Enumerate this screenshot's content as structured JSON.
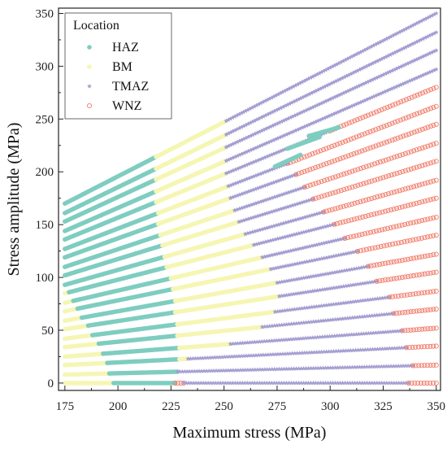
{
  "chart_data": {
    "type": "scatter",
    "title": "",
    "xlabel": "Maximum stress (MPa)",
    "ylabel": "Stress amplitude (MPa)",
    "xlim": [
      172,
      352
    ],
    "ylim": [
      -7,
      355
    ],
    "xticks": [
      175,
      200,
      225,
      250,
      275,
      300,
      325,
      350
    ],
    "yticks": [
      0,
      50,
      100,
      150,
      200,
      250,
      300,
      350
    ],
    "grid": false,
    "legend": {
      "title": "Location",
      "placement": "top-left"
    },
    "series": [
      {
        "name": "HAZ",
        "marker": "filled-circle",
        "color": "#7ecdc0"
      },
      {
        "name": "BM",
        "marker": "filled-circle",
        "color": "#f6f6b4"
      },
      {
        "name": "TMAZ",
        "marker": "star",
        "color": "#a39ed1"
      },
      {
        "name": "WNZ",
        "marker": "open-circle",
        "color": "#f07b68"
      }
    ],
    "line_family": {
      "description": "Each row is a line of constant stress ratio: amplitude rises linearly from amp_at_175 (at 175 MPa) to amp_at_350 (at 350 MPa). Segments give the max-stress ranges where each location appears.",
      "rows": [
        {
          "amp_at_175": 0,
          "amp_at_350": 0,
          "segments": [
            [
              "BM",
              175,
              198
            ],
            [
              "HAZ",
              198,
              227
            ],
            [
              "WNZ",
              227,
              231
            ],
            [
              "TMAZ",
              231,
              337
            ],
            [
              "WNZ",
              337,
              350
            ]
          ]
        },
        {
          "amp_at_175": 8,
          "amp_at_350": 17,
          "segments": [
            [
              "BM",
              175,
              196
            ],
            [
              "HAZ",
              196,
              228
            ],
            [
              "TMAZ",
              228,
              339
            ],
            [
              "WNZ",
              339,
              350
            ]
          ]
        },
        {
          "amp_at_175": 17,
          "amp_at_350": 35,
          "segments": [
            [
              "BM",
              175,
              195
            ],
            [
              "HAZ",
              195,
              229
            ],
            [
              "BM",
              229,
              233
            ],
            [
              "TMAZ",
              233,
              336
            ],
            [
              "WNZ",
              336,
              350
            ]
          ]
        },
        {
          "amp_at_175": 25,
          "amp_at_350": 52,
          "segments": [
            [
              "BM",
              175,
              193
            ],
            [
              "HAZ",
              193,
              229
            ],
            [
              "BM",
              229,
              253
            ],
            [
              "TMAZ",
              253,
              334
            ],
            [
              "WNZ",
              334,
              350
            ]
          ]
        },
        {
          "amp_at_175": 34,
          "amp_at_350": 70,
          "segments": [
            [
              "BM",
              175,
              191
            ],
            [
              "HAZ",
              191,
              228
            ],
            [
              "BM",
              228,
              268
            ],
            [
              "TMAZ",
              268,
              330
            ],
            [
              "WNZ",
              330,
              350
            ]
          ]
        },
        {
          "amp_at_175": 42,
          "amp_at_350": 87,
          "segments": [
            [
              "BM",
              175,
              188
            ],
            [
              "HAZ",
              188,
              228
            ],
            [
              "BM",
              228,
              274
            ],
            [
              "TMAZ",
              274,
              328
            ],
            [
              "WNZ",
              328,
              350
            ]
          ]
        },
        {
          "amp_at_175": 51,
          "amp_at_350": 105,
          "segments": [
            [
              "BM",
              175,
              186
            ],
            [
              "HAZ",
              186,
              227
            ],
            [
              "BM",
              227,
              276
            ],
            [
              "TMAZ",
              276,
              322
            ],
            [
              "WNZ",
              322,
              350
            ]
          ]
        },
        {
          "amp_at_175": 59,
          "amp_at_350": 122,
          "segments": [
            [
              "BM",
              175,
              183
            ],
            [
              "HAZ",
              183,
              227
            ],
            [
              "BM",
              227,
              275
            ],
            [
              "TMAZ",
              275,
              318
            ],
            [
              "WNZ",
              318,
              350
            ]
          ]
        },
        {
          "amp_at_175": 68,
          "amp_at_350": 140,
          "segments": [
            [
              "BM",
              175,
              181
            ],
            [
              "HAZ",
              181,
              226
            ],
            [
              "BM",
              226,
              272
            ],
            [
              "TMAZ",
              272,
              313
            ],
            [
              "WNZ",
              313,
              350
            ]
          ]
        },
        {
          "amp_at_175": 76,
          "amp_at_350": 157,
          "segments": [
            [
              "BM",
              175,
              179
            ],
            [
              "HAZ",
              179,
              225
            ],
            [
              "BM",
              225,
              268
            ],
            [
              "TMAZ",
              268,
              307
            ],
            [
              "WNZ",
              307,
              350
            ]
          ]
        },
        {
          "amp_at_175": 85,
          "amp_at_350": 175,
          "segments": [
            [
              "BM",
              175,
              177
            ],
            [
              "HAZ",
              177,
              223
            ],
            [
              "BM",
              223,
              264
            ],
            [
              "TMAZ",
              264,
              302
            ],
            [
              "WNZ",
              302,
              350
            ]
          ]
        },
        {
          "amp_at_175": 93,
          "amp_at_350": 192,
          "segments": [
            [
              "HAZ",
              175,
              222
            ],
            [
              "BM",
              222,
              260
            ],
            [
              "TMAZ",
              260,
              297
            ],
            [
              "WNZ",
              297,
              350
            ]
          ]
        },
        {
          "amp_at_175": 102,
          "amp_at_350": 210,
          "segments": [
            [
              "HAZ",
              175,
              221
            ],
            [
              "BM",
              221,
              257
            ],
            [
              "TMAZ",
              257,
              292
            ],
            [
              "WNZ",
              292,
              350
            ]
          ]
        },
        {
          "amp_at_175": 110,
          "amp_at_350": 227,
          "segments": [
            [
              "HAZ",
              175,
              220
            ],
            [
              "BM",
              220,
              255
            ],
            [
              "TMAZ",
              255,
              288
            ],
            [
              "WNZ",
              288,
              350
            ]
          ]
        },
        {
          "amp_at_175": 119,
          "amp_at_350": 245,
          "segments": [
            [
              "HAZ",
              175,
              219
            ],
            [
              "BM",
              219,
              253
            ],
            [
              "TMAZ",
              253,
              284
            ],
            [
              "WNZ",
              284,
              350
            ]
          ]
        },
        {
          "amp_at_175": 127,
          "amp_at_350": 262,
          "segments": [
            [
              "HAZ",
              175,
              219
            ],
            [
              "BM",
              219,
              252
            ],
            [
              "TMAZ",
              252,
              280
            ],
            [
              "WNZ",
              280,
              350
            ]
          ]
        },
        {
          "amp_at_175": 136,
          "amp_at_350": 280,
          "segments": [
            [
              "HAZ",
              175,
              218
            ],
            [
              "BM",
              218,
              251
            ],
            [
              "TMAZ",
              251,
              300
            ],
            [
              "WNZ",
              300,
              350
            ]
          ]
        },
        {
          "amp_at_175": 144,
          "amp_at_350": 297,
          "segments": [
            [
              "HAZ",
              175,
              218
            ],
            [
              "BM",
              218,
              251
            ],
            [
              "TMAZ",
              251,
              350
            ]
          ]
        },
        {
          "amp_at_175": 153,
          "amp_at_350": 315,
          "segments": [
            [
              "HAZ",
              175,
              218
            ],
            [
              "BM",
              218,
              251
            ],
            [
              "TMAZ",
              251,
              350
            ]
          ]
        },
        {
          "amp_at_175": 161,
          "amp_at_350": 332,
          "segments": [
            [
              "HAZ",
              175,
              218
            ],
            [
              "BM",
              218,
              251
            ],
            [
              "TMAZ",
              251,
              350
            ]
          ]
        },
        {
          "amp_at_175": 170,
          "amp_at_350": 350,
          "segments": [
            [
              "HAZ",
              175,
              218
            ],
            [
              "BM",
              218,
              251
            ],
            [
              "TMAZ",
              251,
              350
            ]
          ]
        }
      ],
      "extra_segments": [
        {
          "location": "HAZ",
          "points": [
            [
              274,
              205
            ],
            [
              286,
              216
            ]
          ]
        },
        {
          "location": "HAZ",
          "points": [
            [
              280,
              222
            ],
            [
              295,
              233
            ]
          ]
        },
        {
          "location": "HAZ",
          "points": [
            [
              290,
              234
            ],
            [
              304,
              242
            ]
          ]
        }
      ]
    }
  }
}
